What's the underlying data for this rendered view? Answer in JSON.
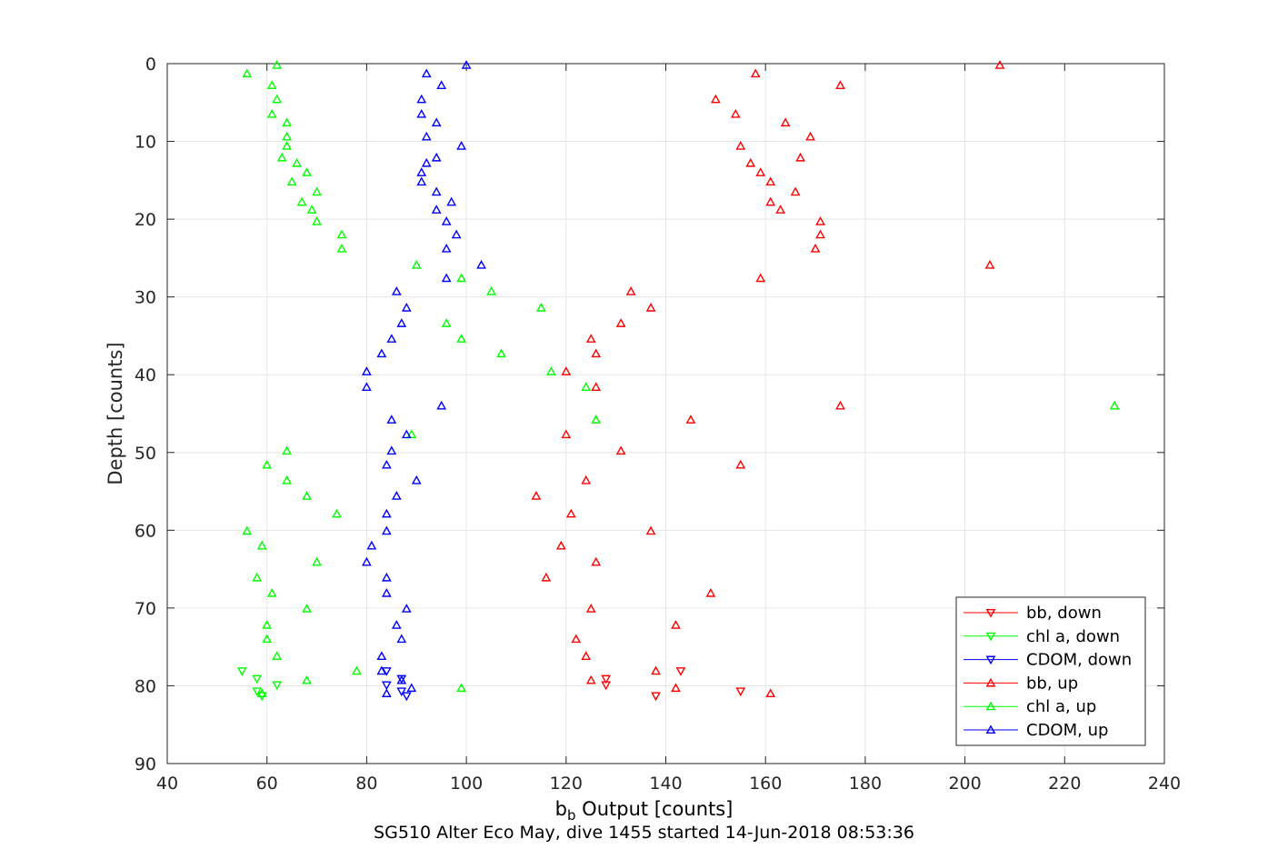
{
  "chart_data": {
    "type": "scatter",
    "xlabel_main": "b",
    "xlabel_sub": "b",
    "xlabel_rest": " Output [counts]",
    "ylabel": "Depth [counts]",
    "subtitle": "SG510 Alter Eco May, dive 1455 started 14-Jun-2018 08:53:36",
    "xlim": [
      40,
      240
    ],
    "ylim": [
      0,
      90
    ],
    "y_reversed": true,
    "grid": true,
    "legend_position": "bottom-right",
    "x_ticks": [
      "40",
      "60",
      "80",
      "100",
      "120",
      "140",
      "160",
      "180",
      "200",
      "220",
      "240"
    ],
    "y_ticks": [
      "0",
      "10",
      "20",
      "30",
      "40",
      "50",
      "60",
      "70",
      "80",
      "90"
    ],
    "series": [
      {
        "name": "bb, down",
        "color": "#ff0000",
        "marker": "down",
        "points": [
          [
            143,
            78.1
          ],
          [
            128,
            79.1
          ],
          [
            128,
            79.9
          ],
          [
            155,
            80.7
          ],
          [
            138,
            81.3
          ]
        ]
      },
      {
        "name": "chl a, down",
        "color": "#00ff00",
        "marker": "down",
        "points": [
          [
            55,
            78.1
          ],
          [
            58,
            79.1
          ],
          [
            62,
            79.9
          ],
          [
            58,
            80.7
          ],
          [
            59,
            81.3
          ]
        ]
      },
      {
        "name": "CDOM, down",
        "color": "#0000ff",
        "marker": "down",
        "points": [
          [
            84,
            78.1
          ],
          [
            87,
            79.1
          ],
          [
            84,
            79.9
          ],
          [
            87,
            80.7
          ],
          [
            88,
            81.3
          ]
        ]
      },
      {
        "name": "bb, up",
        "color": "#ff0000",
        "marker": "up",
        "points": [
          [
            207,
            0.2
          ],
          [
            158,
            1.3
          ],
          [
            175,
            2.8
          ],
          [
            150,
            4.6
          ],
          [
            154,
            6.5
          ],
          [
            164,
            7.6
          ],
          [
            169,
            9.4
          ],
          [
            155,
            10.6
          ],
          [
            167,
            12.1
          ],
          [
            157,
            12.8
          ],
          [
            159,
            14
          ],
          [
            161,
            15.2
          ],
          [
            166,
            16.5
          ],
          [
            161,
            17.8
          ],
          [
            163,
            18.8
          ],
          [
            171,
            20.3
          ],
          [
            171,
            22
          ],
          [
            170,
            23.8
          ],
          [
            205,
            25.9
          ],
          [
            159,
            27.6
          ],
          [
            133,
            29.3
          ],
          [
            137,
            31.4
          ],
          [
            131,
            33.4
          ],
          [
            125,
            35.4
          ],
          [
            126,
            37.3
          ],
          [
            120,
            39.6
          ],
          [
            126,
            41.6
          ],
          [
            175,
            44
          ],
          [
            145,
            45.8
          ],
          [
            120,
            47.7
          ],
          [
            131,
            49.8
          ],
          [
            155,
            51.6
          ],
          [
            124,
            53.6
          ],
          [
            114,
            55.6
          ],
          [
            121,
            57.9
          ],
          [
            137,
            60.1
          ],
          [
            119,
            62
          ],
          [
            126,
            64.1
          ],
          [
            116,
            66.1
          ],
          [
            149,
            68.1
          ],
          [
            125,
            70.1
          ],
          [
            142,
            72.2
          ],
          [
            122,
            74
          ],
          [
            124,
            76.2
          ],
          [
            138,
            78.1
          ],
          [
            125,
            79.3
          ],
          [
            142,
            80.3
          ],
          [
            161,
            81
          ]
        ]
      },
      {
        "name": "chl a, up",
        "color": "#00ff00",
        "marker": "up",
        "points": [
          [
            62,
            0.2
          ],
          [
            56,
            1.3
          ],
          [
            61,
            2.8
          ],
          [
            62,
            4.6
          ],
          [
            61,
            6.5
          ],
          [
            64,
            7.6
          ],
          [
            64,
            9.4
          ],
          [
            64,
            10.6
          ],
          [
            63,
            12.1
          ],
          [
            66,
            12.8
          ],
          [
            68,
            14
          ],
          [
            65,
            15.2
          ],
          [
            70,
            16.5
          ],
          [
            67,
            17.8
          ],
          [
            69,
            18.8
          ],
          [
            70,
            20.3
          ],
          [
            75,
            22
          ],
          [
            75,
            23.8
          ],
          [
            90,
            25.9
          ],
          [
            99,
            27.6
          ],
          [
            105,
            29.3
          ],
          [
            115,
            31.4
          ],
          [
            96,
            33.4
          ],
          [
            99,
            35.4
          ],
          [
            107,
            37.3
          ],
          [
            117,
            39.6
          ],
          [
            124,
            41.6
          ],
          [
            230,
            44
          ],
          [
            126,
            45.8
          ],
          [
            89,
            47.7
          ],
          [
            64,
            49.8
          ],
          [
            60,
            51.6
          ],
          [
            64,
            53.6
          ],
          [
            68,
            55.6
          ],
          [
            74,
            57.9
          ],
          [
            56,
            60.1
          ],
          [
            59,
            62
          ],
          [
            70,
            64.1
          ],
          [
            58,
            66.1
          ],
          [
            61,
            68.1
          ],
          [
            68,
            70.1
          ],
          [
            60,
            72.2
          ],
          [
            60,
            74
          ],
          [
            62,
            76.2
          ],
          [
            78,
            78.1
          ],
          [
            68,
            79.3
          ],
          [
            99,
            80.3
          ],
          [
            59,
            81
          ]
        ]
      },
      {
        "name": "CDOM, up",
        "color": "#0000ff",
        "marker": "up",
        "points": [
          [
            100,
            0.2
          ],
          [
            92,
            1.3
          ],
          [
            95,
            2.8
          ],
          [
            91,
            4.6
          ],
          [
            91,
            6.5
          ],
          [
            94,
            7.6
          ],
          [
            92,
            9.4
          ],
          [
            99,
            10.6
          ],
          [
            94,
            12.1
          ],
          [
            92,
            12.8
          ],
          [
            91,
            14
          ],
          [
            91,
            15.2
          ],
          [
            94,
            16.5
          ],
          [
            97,
            17.8
          ],
          [
            94,
            18.8
          ],
          [
            96,
            20.3
          ],
          [
            98,
            22
          ],
          [
            96,
            23.8
          ],
          [
            103,
            25.9
          ],
          [
            96,
            27.6
          ],
          [
            86,
            29.3
          ],
          [
            88,
            31.4
          ],
          [
            87,
            33.4
          ],
          [
            85,
            35.4
          ],
          [
            83,
            37.3
          ],
          [
            80,
            39.6
          ],
          [
            80,
            41.6
          ],
          [
            95,
            44
          ],
          [
            85,
            45.8
          ],
          [
            88,
            47.7
          ],
          [
            85,
            49.8
          ],
          [
            84,
            51.6
          ],
          [
            90,
            53.6
          ],
          [
            86,
            55.6
          ],
          [
            84,
            57.9
          ],
          [
            84,
            60.1
          ],
          [
            81,
            62
          ],
          [
            80,
            64.1
          ],
          [
            84,
            66.1
          ],
          [
            84,
            68.1
          ],
          [
            88,
            70.1
          ],
          [
            86,
            72.2
          ],
          [
            87,
            74
          ],
          [
            83,
            76.2
          ],
          [
            83,
            78.1
          ],
          [
            87,
            79.3
          ],
          [
            89,
            80.3
          ],
          [
            84,
            81
          ]
        ]
      }
    ]
  }
}
